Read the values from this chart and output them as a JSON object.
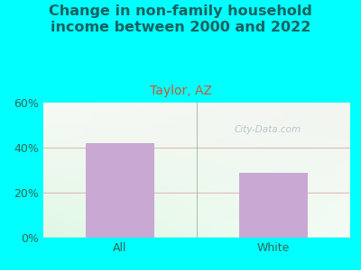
{
  "title": "Change in non-family household\nincome between 2000 and 2022",
  "subtitle": "Taylor, AZ",
  "categories": [
    "All",
    "White"
  ],
  "values": [
    42,
    29
  ],
  "bar_color": "#c9a8d4",
  "title_fontsize": 11.5,
  "subtitle_fontsize": 10,
  "subtitle_color": "#cc5533",
  "title_color": "#1a6060",
  "tick_label_color": "#336655",
  "ylim": [
    0,
    60
  ],
  "yticks": [
    0,
    20,
    40,
    60
  ],
  "ytick_labels": [
    "0%",
    "20%",
    "40%",
    "60%"
  ],
  "background_outer": "#00ffff",
  "grid_color": "#dda0a0",
  "watermark": "City-Data.com",
  "watermark_color": "#b0bec5"
}
